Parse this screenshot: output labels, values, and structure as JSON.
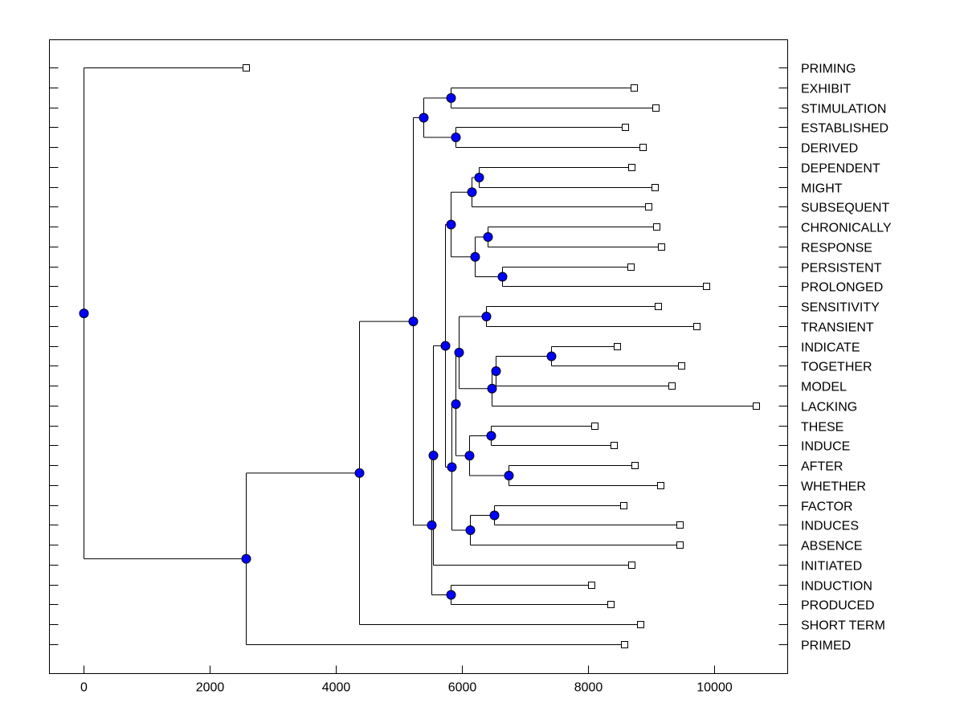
{
  "chart_data": {
    "type": "dendrogram",
    "title": "",
    "xlabel": "",
    "ylabel": "",
    "xlim": [
      -535,
      11170
    ],
    "xticks": [
      0,
      2000,
      4000,
      6000,
      8000,
      10000
    ],
    "grid": false,
    "colors": {
      "node": "#0000ff",
      "line": "#000000",
      "leaf_marker": "#ffffff"
    },
    "leaves": [
      {
        "label": "PRIMING",
        "h": 2577
      },
      {
        "label": "EXHIBIT",
        "h": 8737
      },
      {
        "label": "STIMULATION",
        "h": 9069
      },
      {
        "label": "ESTABLISHED",
        "h": 8597
      },
      {
        "label": "DERIVED",
        "h": 8865
      },
      {
        "label": "DEPENDENT",
        "h": 8699
      },
      {
        "label": "MIGHT",
        "h": 9056
      },
      {
        "label": "SUBSEQUENT",
        "h": 8954
      },
      {
        "label": "CHRONICALLY",
        "h": 9082
      },
      {
        "label": "RESPONSE",
        "h": 9158
      },
      {
        "label": "PERSISTENT",
        "h": 8686
      },
      {
        "label": "PROLONGED",
        "h": 9872
      },
      {
        "label": "SENSITIVITY",
        "h": 9107
      },
      {
        "label": "TRANSIENT",
        "h": 9719
      },
      {
        "label": "INDICATE",
        "h": 8469
      },
      {
        "label": "TOGETHER",
        "h": 9477
      },
      {
        "label": "MODEL",
        "h": 9324
      },
      {
        "label": "LACKING",
        "h": 10663
      },
      {
        "label": "THESE",
        "h": 8112
      },
      {
        "label": "INDUCE",
        "h": 8418
      },
      {
        "label": "AFTER",
        "h": 8750
      },
      {
        "label": "WHETHER",
        "h": 9145
      },
      {
        "label": "FACTOR",
        "h": 8559
      },
      {
        "label": "INDUCES",
        "h": 9452
      },
      {
        "label": "ABSENCE",
        "h": 9452
      },
      {
        "label": "INITIATED",
        "h": 8699
      },
      {
        "label": "INDUCTION",
        "h": 8061
      },
      {
        "label": "PRODUCED",
        "h": 8367
      },
      {
        "label": "SHORT TERM",
        "h": 8839
      },
      {
        "label": "PRIMED",
        "h": 8584
      }
    ],
    "tree": {
      "h": 0,
      "c": [
        0,
        {
          "h": 2577,
          "c": [
            {
              "h": 4375,
              "c": [
                {
                  "h": 5230,
                  "c": [
                    {
                      "h": 5395,
                      "c": [
                        {
                          "h": 5829,
                          "c": [
                            1,
                            2
                          ]
                        },
                        {
                          "h": 5906,
                          "c": [
                            3,
                            4
                          ]
                        }
                      ]
                    },
                    {
                      "h": 5523,
                      "c": [
                        {
                          "h": 5548,
                          "c": [
                            {
                              "h": 5740,
                              "c": [
                                {
                                  "h": 5829,
                                  "c": [
                                    {
                                      "h": 6161,
                                      "c": [
                                        {
                                          "h": 6276,
                                          "c": [
                                            5,
                                            6
                                          ]
                                        },
                                        7
                                      ]
                                    },
                                    {
                                      "h": 6212,
                                      "c": [
                                        {
                                          "h": 6416,
                                          "c": [
                                            8,
                                            9
                                          ]
                                        },
                                        {
                                          "h": 6645,
                                          "c": [
                                            10,
                                            11
                                          ]
                                        }
                                      ]
                                    }
                                  ]
                                },
                                {
                                  "h": 5842,
                                  "c": [
                                    {
                                      "h": 5906,
                                      "c": [
                                        {
                                          "h": 5957,
                                          "c": [
                                            {
                                              "h": 6390,
                                              "c": [
                                                12,
                                                13
                                              ]
                                            },
                                            {
                                              "h": 6480,
                                              "c": [
                                                {
                                                  "h": 6543,
                                                  "c": [
                                                    {
                                                      "h": 7423,
                                                      "c": [
                                                        14,
                                                        15
                                                      ]
                                                    },
                                                    16
                                                  ]
                                                },
                                                17
                                              ]
                                            }
                                          ]
                                        },
                                        {
                                          "h": 6122,
                                          "c": [
                                            {
                                              "h": 6467,
                                              "c": [
                                                18,
                                                19
                                              ]
                                            },
                                            {
                                              "h": 6747,
                                              "c": [
                                                20,
                                                21
                                              ]
                                            }
                                          ]
                                        }
                                      ]
                                    },
                                    {
                                      "h": 6135,
                                      "c": [
                                        {
                                          "h": 6518,
                                          "c": [
                                            22,
                                            23
                                          ]
                                        },
                                        24
                                      ]
                                    }
                                  ]
                                }
                              ]
                            },
                            25
                          ]
                        },
                        {
                          "h": 5829,
                          "c": [
                            26,
                            27
                          ]
                        }
                      ]
                    }
                  ]
                },
                28
              ]
            },
            29
          ]
        }
      ]
    }
  }
}
